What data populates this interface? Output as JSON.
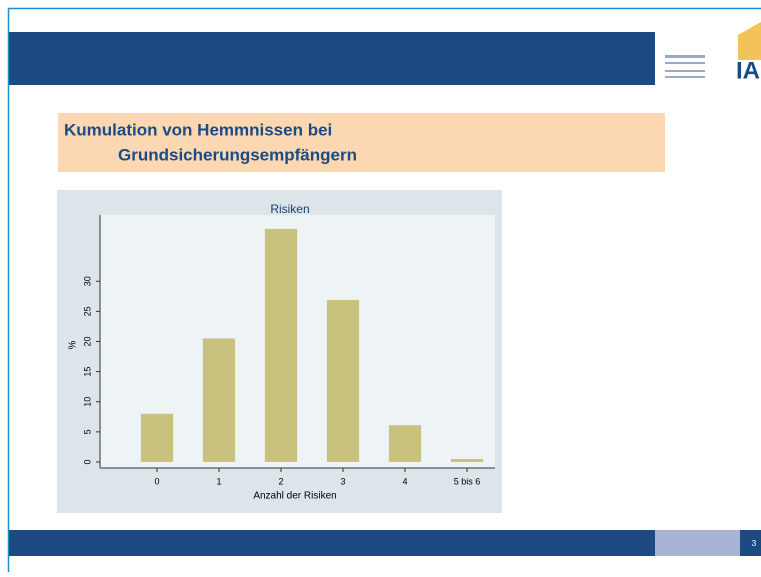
{
  "slide": {
    "title_lines": [
      "Kumulation von Hemmnissen bei",
      "Grundsicherungsempfängern"
    ],
    "logo": "IAB",
    "page_number": "3"
  },
  "chart_data": {
    "type": "bar",
    "title": "Risiken",
    "x_label": "Anzahl der Risiken",
    "y_label": "%",
    "categories": [
      "0",
      "1",
      "2",
      "3",
      "4",
      "5 bis 6"
    ],
    "values": [
      8.0,
      20.5,
      38.7,
      26.9,
      6.1,
      0.5
    ],
    "color": "#c9c17e",
    "ylim": [
      -1,
      41
    ],
    "yticks": [
      0,
      5,
      10,
      15,
      20,
      25,
      30
    ],
    "grid": false
  }
}
